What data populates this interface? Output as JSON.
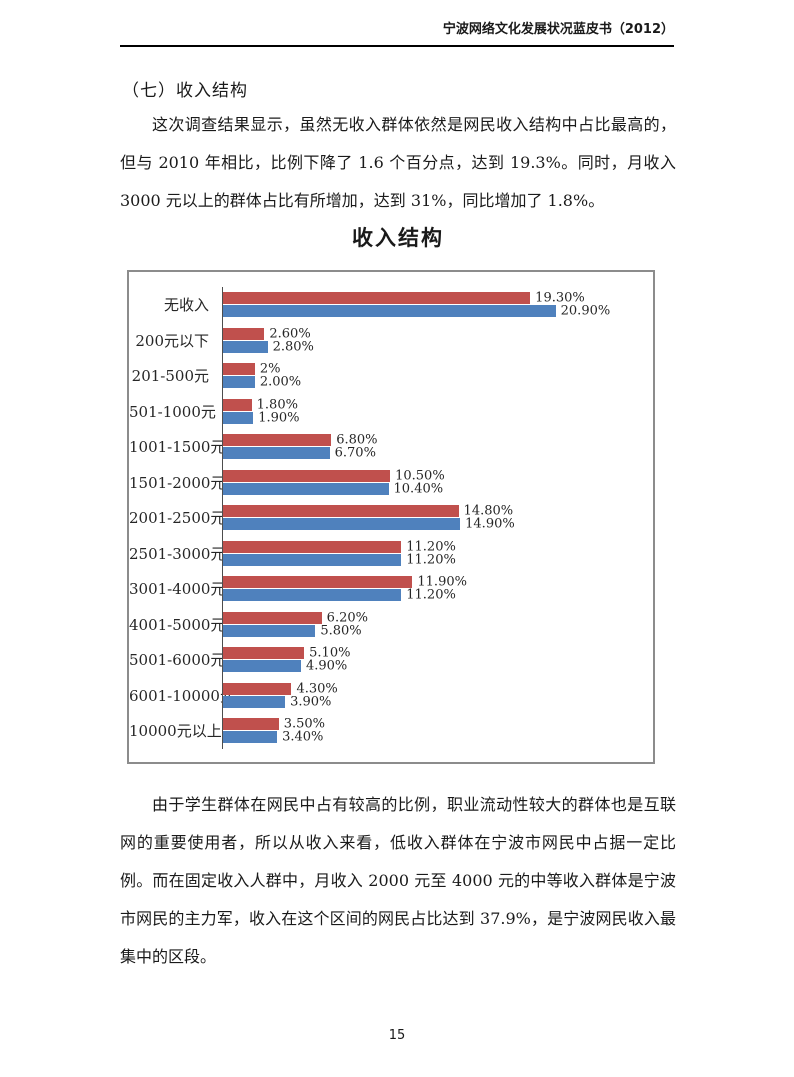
{
  "header": {
    "title": "宁波网络文化发展状况蓝皮书（2012）"
  },
  "section": {
    "heading": "（七）收入结构"
  },
  "paragraphs": {
    "p1": "这次调查结果显示，虽然无收入群体依然是网民收入结构中占比最高的，但与 2010 年相比，比例下降了 1.6 个百分点，达到 19.3%。同时，月收入 3000 元以上的群体占比有所增加，达到 31%，同比增加了 1.8%。",
    "p2": "由于学生群体在网民中占有较高的比例，职业流动性较大的群体也是互联网的重要使用者，所以从收入来看，低收入群体在宁波市网民中占据一定比例。而在固定收入人群中，月收入 2000 元至 4000 元的中等收入群体是宁波市网民的主力军，收入在这个区间的网民占比达到 37.9%，是宁波网民收入最集中的区段。"
  },
  "chart_data": {
    "type": "bar",
    "orientation": "horizontal",
    "title": "收入结构",
    "categories": [
      "无收入",
      "200元以下",
      "201-500元",
      "501-1000元",
      "1001-1500元",
      "1501-2000元",
      "2001-2500元",
      "2501-3000元",
      "3001-4000元",
      "4001-5000元",
      "5001-6000元",
      "6001-10000元",
      "10000元以上"
    ],
    "series": [
      {
        "name": "red-series",
        "color": "#C0504D",
        "values": [
          19.3,
          2.6,
          2.0,
          1.8,
          6.8,
          10.5,
          14.8,
          11.2,
          11.9,
          6.2,
          5.1,
          4.3,
          3.5
        ],
        "labels": [
          "19.30%",
          "2.60%",
          "2%",
          "1.80%",
          "6.80%",
          "10.50%",
          "14.80%",
          "11.20%",
          "11.90%",
          "6.20%",
          "5.10%",
          "4.30%",
          "3.50%"
        ]
      },
      {
        "name": "blue-series",
        "color": "#4F81BD",
        "values": [
          20.9,
          2.8,
          2.0,
          1.9,
          6.7,
          10.4,
          14.9,
          11.2,
          11.2,
          5.8,
          4.9,
          3.9,
          3.4
        ],
        "labels": [
          "20.90%",
          "2.80%",
          "2.00%",
          "1.90%",
          "6.70%",
          "10.40%",
          "14.90%",
          "11.20%",
          "11.20%",
          "5.80%",
          "4.90%",
          "3.90%",
          "3.40%"
        ]
      }
    ],
    "xlim": [
      0,
      26.2
    ],
    "grid": false,
    "legend": "none",
    "value_labels": "outside-end"
  },
  "footer": {
    "page_number": "15"
  }
}
